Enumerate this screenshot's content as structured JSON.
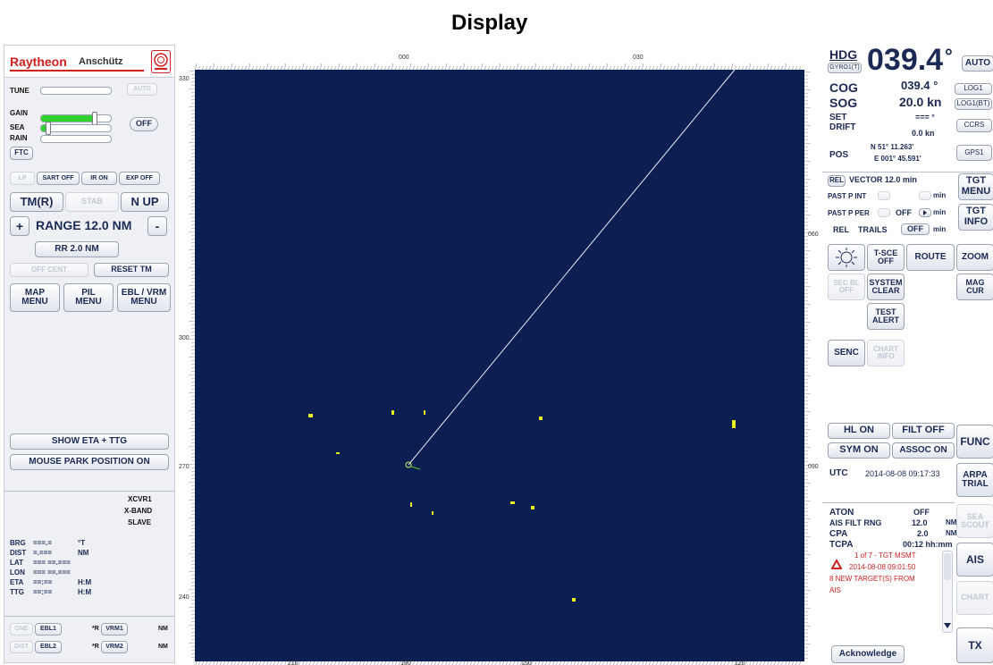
{
  "page_title": "Display",
  "brand": {
    "name": "Raytheon",
    "sub": "Anschütz",
    "emblem": "emblem-icon",
    "brand_color": "#d02020"
  },
  "left": {
    "tune_label": "TUNE",
    "tune_value": 0,
    "auto_label": "AUTO",
    "gain_label": "GAIN",
    "gain_value": 0.78,
    "sea_label": "SEA",
    "sea_value": 0.08,
    "rain_label": "RAIN",
    "rain_value": 0.0,
    "off_label": "OFF",
    "ftc_label": "FTC",
    "lp_label": "LP",
    "sart_off": "SART OFF",
    "ir_on": "IR ON",
    "exp_off": "EXP OFF",
    "tm_r": "TM(R)",
    "stab": "STAB",
    "n_up": "N UP",
    "plus": "+",
    "range": "RANGE 12.0 NM",
    "minus": "-",
    "rr": "RR 2.0 NM",
    "off_cent": "OFF CENT",
    "reset_tm": "RESET TM",
    "map_menu": "MAP\nMENU",
    "pil_menu": "PIL\nMENU",
    "ebl_vrm_menu": "EBL / VRM\nMENU",
    "show_eta": "SHOW ETA + TTG",
    "mouse_park": "MOUSE PARK POSITION ON",
    "cursor_rows": [
      {
        "label": "BRG",
        "value": "===.=",
        "unit": "°T"
      },
      {
        "label": "DIST",
        "value": "=.===",
        "unit": "NM"
      },
      {
        "label": "LAT",
        "value": "=== ==.===",
        "unit": ""
      },
      {
        "label": "LON",
        "value": "=== ==.===",
        "unit": ""
      },
      {
        "label": "ETA",
        "value": "==:==",
        "unit": "H:M"
      },
      {
        "label": "TTG",
        "value": "==:==",
        "unit": "H:M"
      }
    ],
    "xcvr": "XCVR1",
    "band": "X-BAND",
    "slave": "SLAVE",
    "ebl1": "EBL1",
    "ebl2": "EBL2",
    "vrm1": "VRM1",
    "vrm2": "VRM2",
    "one": "ONE",
    "dist": "DIST",
    "r": "*R",
    "nm": "NM"
  },
  "right": {
    "hdg_label": "HDG",
    "hdg_src": "GYRO1(T)",
    "hdg_value": "039.4",
    "deg": "°",
    "auto": "AUTO",
    "cog_label": "COG",
    "cog_value": "039.4 °",
    "log1": "LOG1",
    "sog_label": "SOG",
    "sog_value": "20.0 kn",
    "log1bt": "LOG1(BT)",
    "set_label": "SET",
    "set_value": "=== °",
    "ccrs": "CCRS",
    "drift_label": "DRIFT",
    "drift_value": "0.0 kn",
    "pos_label": "POS",
    "pos_lat": "N 51° 11.263'",
    "pos_lon": "E 001° 45.591'",
    "gps1": "GPS1",
    "rel": "REL",
    "vector": "VECTOR  12.0  min",
    "tgt_menu": "TGT\nMENU",
    "past_p_int": "PAST P INT",
    "min": "min",
    "past_p_per": "PAST P PER",
    "off": "OFF",
    "tgt_info": "TGT\nINFO",
    "rel2": "REL",
    "trails": "TRAILS",
    "trails_off": "OFF",
    "tsce_off": "T-SCE\nOFF",
    "route": "ROUTE",
    "zoom": "ZOOM",
    "secbl_off": "SEC BL\nOFF",
    "system_clear": "SYSTEM\nCLEAR",
    "mag_cur": "MAG\nCUR",
    "test_alert": "TEST\nALERT",
    "senc": "SENC",
    "chart_info": "CHART\nINFO",
    "hl_on": "HL ON",
    "filt_off": "FILT OFF",
    "func": "FUNC",
    "sym_on": "SYM ON",
    "assoc_on": "ASSOC ON",
    "utc_label": "UTC",
    "utc_value": "2014-08-08  09:17:33",
    "arpa_trial": "ARPA\nTRIAL",
    "aton_label": "ATON",
    "aton_value": "OFF",
    "sea_scout": "SEA\nSCOUT",
    "ais_filt_label": "AIS FILT RNG",
    "ais_filt_value": "12.0",
    "ais_filt_unit": "NM",
    "cpa_label": "CPA",
    "cpa_value": "2.0",
    "cpa_unit": "NM",
    "ais": "AIS",
    "tcpa_label": "TCPA",
    "tcpa_value": "00:12 hh:mm",
    "alert_line1": "1 of 7 - TGT MSMT",
    "alert_line2": "2014-08-08 09:01:50",
    "alert_line3": "8 NEW TARGET(S) FROM",
    "alert_line4": "AIS",
    "chart": "CHART",
    "acknowledge": "Acknowledge",
    "tx": "TX"
  },
  "radar": {
    "bg_color": "#0c1f52",
    "bearings_top": [
      "000",
      "030"
    ],
    "bearings_bottom": [
      "210",
      "180",
      "150",
      "120"
    ],
    "bearing_left": [
      "330",
      "300",
      "270",
      "240"
    ],
    "bearing_right": [
      "060",
      "090"
    ],
    "own_ship_label": "own-ship-icon",
    "heading_deg": 39.4
  }
}
